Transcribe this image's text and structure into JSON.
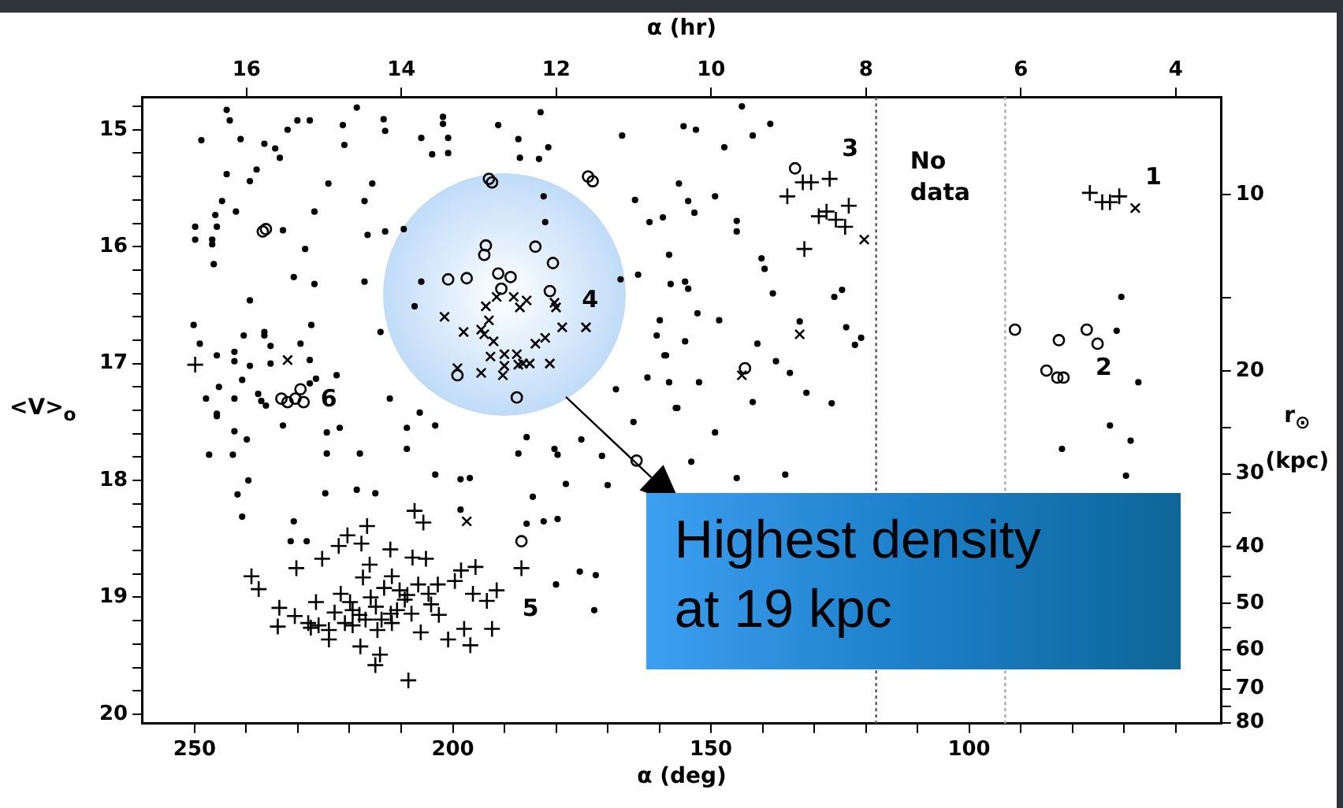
{
  "chart_data": {
    "type": "scatter",
    "xlabel": "α (deg)",
    "x2label": "α (hr)",
    "ylabel": "<V>$_{o}$",
    "y2label": "r$_{⊙}$ (kpc)",
    "xlim": [
      260.2,
      51.1
    ],
    "x2lim": [
      17.35,
      3.41
    ],
    "ylim": [
      20.08,
      14.72
    ],
    "y2lim": [
      80.3,
      6.8
    ],
    "log": "y2",
    "xticks": [
      250,
      {
        "value": 240,
        "label": null
      },
      {
        "value": 230,
        "label": null
      },
      {
        "value": 220,
        "label": null
      },
      {
        "value": 210,
        "label": null
      },
      200,
      {
        "value": 190,
        "label": null
      },
      {
        "value": 180,
        "label": null
      },
      {
        "value": 170,
        "label": null
      },
      {
        "value": 160,
        "label": null
      },
      150,
      {
        "value": 140,
        "label": null
      },
      {
        "value": 130,
        "label": null
      },
      {
        "value": 120,
        "label": null
      },
      {
        "value": 110,
        "label": null
      },
      100,
      {
        "value": 90,
        "label": null
      },
      {
        "value": 80,
        "label": null
      },
      {
        "value": 70,
        "label": null
      },
      {
        "value": 60,
        "label": null
      }
    ],
    "x2ticks": [
      16,
      14,
      12,
      10,
      8,
      6,
      4
    ],
    "yticks": [
      {
        "value": 14.8,
        "label": null
      },
      15,
      {
        "value": 15.2,
        "label": null
      },
      {
        "value": 15.4,
        "label": null
      },
      {
        "value": 15.6,
        "label": null
      },
      {
        "value": 15.8,
        "label": null
      },
      16,
      {
        "value": 16.2,
        "label": null
      },
      {
        "value": 16.4,
        "label": null
      },
      {
        "value": 16.6,
        "label": null
      },
      {
        "value": 16.8,
        "label": null
      },
      17,
      {
        "value": 17.2,
        "label": null
      },
      {
        "value": 17.4,
        "label": null
      },
      {
        "value": 17.6,
        "label": null
      },
      {
        "value": 17.8,
        "label": null
      },
      18,
      {
        "value": 18.2,
        "label": null
      },
      {
        "value": 18.4,
        "label": null
      },
      {
        "value": 18.6,
        "label": null
      },
      {
        "value": 18.8,
        "label": null
      },
      19,
      {
        "value": 19.2,
        "label": null
      },
      {
        "value": 19.4,
        "label": null
      },
      {
        "value": 19.6,
        "label": null
      },
      {
        "value": 19.8,
        "label": null
      },
      20
    ],
    "y2ticks": [
      10,
      {
        "value": 15,
        "label": null
      },
      20,
      {
        "value": 25,
        "label": null
      },
      30,
      {
        "value": 35,
        "label": null
      },
      40,
      {
        "value": 45,
        "label": null
      },
      50,
      {
        "value": 55,
        "label": null
      },
      60,
      {
        "value": 65,
        "label": null
      },
      70,
      {
        "value": 75,
        "label": null
      },
      80
    ],
    "series": [
      {
        "color": "#000000",
        "marker": "point",
        "x": [
          243.8,
          243.2,
          248.7,
          241.1,
          236.5,
          234.4,
          233.5,
          232,
          230.1,
          227.7,
          221.3,
          221,
          218.6,
          213.4,
          213.1,
          206.1,
          204,
          201.9,
          201.9,
          200.9,
          200.9,
          191.2,
          187.3,
          187,
          183,
          183.3,
          181.5,
          167.2,
          243.8,
          238,
          239.3,
          224.1,
          215.6,
          244.7,
          242,
          246,
          249.9,
          249.9,
          246.6,
          246.6,
          245.7,
          246.3,
          232.9,
          228.6,
          226.8,
          217.1,
          216.5,
          213.1,
          209.5,
          230.8,
          226.8,
          217.1,
          239.3,
          250.2,
          249,
          240.5,
          236.5,
          236.5,
          235.3,
          227.4,
          229.5,
          242.3,
          242.3,
          245.7,
          239.3,
          235.3,
          227.7,
          240.8,
          245.3,
          226.5,
          227.7,
          222.5,
          247.8,
          242.3,
          237.7,
          237.1,
          236.2,
          245.7,
          214,
          212.2,
          182.4,
          164.7,
          161.9,
          159.3,
          167.5,
          164.1,
          159.9,
          160.5,
          159,
          162.3,
          168.4,
          182.1,
          206.1,
          207.4,
          144,
          138.5,
          155.3,
          152.9,
          141.9,
          147.4,
          156.2,
          149.2,
          154.4,
          153.2,
          145,
          145,
          158.1,
          140.2,
          139.6,
          157.8,
          155,
          154.4,
          138,
          126.1,
          124.6,
          152.6,
          148.4,
          132.8,
          123.8,
          141,
          155,
          158.7,
          137.4,
          134.7,
          122.1,
          120.9,
          158.1,
          152.3,
          156.8,
          141.9,
          131.5,
          126.6,
          70.5,
          71.4,
          67.2,
          245.7,
          242.3,
          239.9,
          247.2,
          242.6,
          239.6,
          241.7,
          240.8,
          232.9,
          224.4,
          224.4,
          221.9,
          218,
          208.9,
          208.9,
          206.4,
          203.4,
          224.7,
          218.6,
          215,
          203.4,
          198.5,
          196.7,
          230.8,
          231.4,
          228.3,
          198.5,
          185.7,
          187.3,
          180.3,
          179.7,
          175.1,
          171.1,
          178.1,
          170,
          184.5,
          185.7,
          182.4,
          179.7,
          165,
          175.4,
          172.3,
          180,
          172.6,
          156.5,
          149.2,
          153.8,
          145,
          135.6,
          72.7,
          68.7,
          82,
          69.6
        ],
        "values": [
          14.83,
          14.92,
          15.09,
          15.08,
          15.12,
          15.16,
          15.24,
          15.0,
          14.92,
          14.92,
          14.96,
          15.13,
          14.81,
          14.91,
          15.01,
          15.07,
          15.21,
          14.89,
          14.95,
          15.07,
          15.2,
          14.96,
          15.08,
          15.24,
          14.85,
          15.25,
          15.15,
          15.05,
          15.38,
          15.34,
          15.44,
          15.46,
          15.46,
          15.61,
          15.7,
          15.73,
          15.83,
          15.94,
          15.94,
          15.98,
          15.83,
          16.15,
          15.86,
          16.02,
          15.7,
          15.61,
          15.9,
          15.87,
          15.85,
          16.26,
          16.32,
          16.3,
          16.46,
          16.67,
          16.83,
          16.76,
          16.76,
          16.73,
          16.85,
          16.67,
          16.83,
          16.9,
          16.98,
          16.93,
          17.02,
          17.0,
          16.97,
          17.14,
          17.2,
          17.13,
          17.17,
          17.1,
          17.3,
          17.3,
          17.26,
          17.32,
          17.36,
          17.43,
          16.73,
          17.3,
          15.57,
          15.6,
          15.79,
          15.75,
          16.28,
          16.24,
          16.63,
          16.76,
          16.93,
          17.12,
          17.22,
          15.79,
          16.3,
          16.51,
          14.8,
          14.95,
          14.97,
          15.0,
          15.05,
          15.15,
          15.46,
          15.57,
          15.61,
          15.71,
          15.78,
          15.87,
          16.07,
          16.1,
          16.19,
          16.32,
          16.3,
          16.36,
          16.4,
          16.43,
          16.37,
          16.57,
          16.63,
          16.64,
          16.69,
          16.83,
          16.81,
          16.93,
          16.98,
          17.08,
          16.84,
          16.78,
          17.16,
          17.16,
          17.38,
          17.33,
          17.25,
          17.34,
          16.43,
          16.72,
          17.16,
          17.45,
          17.58,
          17.65,
          17.78,
          17.78,
          18.0,
          18.12,
          18.31,
          17.53,
          17.59,
          17.77,
          17.55,
          17.77,
          17.55,
          17.73,
          17.42,
          17.53,
          18.11,
          18.08,
          18.11,
          17.95,
          17.99,
          17.98,
          18.35,
          18.52,
          18.52,
          18.25,
          17.63,
          17.77,
          17.73,
          17.78,
          17.65,
          17.79,
          18.03,
          18.04,
          18.14,
          18.37,
          18.35,
          18.33,
          17.5,
          18.78,
          18.81,
          18.89,
          19.11,
          17.38,
          17.59,
          17.84,
          17.98,
          17.95,
          17.53,
          17.66,
          17.73,
          17.96
        ]
      },
      {
        "color": "#000000",
        "marker": "circle",
        "x": [
          193,
          192.4,
          173.8,
          172.9,
          236.8,
          236.2,
          193.6,
          193.9,
          184,
          180.6,
          200.9,
          197.3,
          191.2,
          188.8,
          190.6,
          181.2,
          199.1,
          187.6,
          233.2,
          232,
          230.5,
          229.5,
          228.9,
          133.7,
          143.4,
          91.1,
          82.6,
          77.2,
          75.1,
          85,
          82.9,
          81.7,
          186.7,
          164.4
        ],
        "values": [
          15.42,
          15.45,
          15.4,
          15.44,
          15.87,
          15.85,
          15.99,
          16.07,
          16.0,
          16.14,
          16.28,
          16.27,
          16.23,
          16.26,
          16.36,
          16.38,
          17.1,
          17.29,
          17.3,
          17.33,
          17.3,
          17.22,
          17.33,
          15.33,
          17.04,
          16.71,
          16.8,
          16.71,
          16.83,
          17.06,
          17.12,
          17.12,
          18.52,
          17.83
        ]
      },
      {
        "color": "#000000",
        "marker": "x",
        "x": [
          232,
          201.6,
          197.9,
          193.6,
          191.5,
          193,
          194.5,
          193.9,
          192.1,
          188.2,
          185.7,
          187,
          180.3,
          180,
          178.8,
          174.2,
          184,
          182.1,
          192.7,
          190,
          187.6,
          190,
          190.3,
          186.4,
          185.1,
          187.3,
          181.2,
          199.1,
          194.5,
          120.3,
          132.8,
          144,
          67.8,
          197.3
        ],
        "values": [
          16.97,
          16.6,
          16.73,
          16.51,
          16.43,
          16.63,
          16.71,
          16.75,
          16.81,
          16.43,
          16.46,
          16.52,
          16.48,
          16.52,
          16.69,
          16.69,
          16.83,
          16.78,
          16.94,
          16.92,
          16.92,
          17.02,
          17.1,
          17.0,
          17.0,
          17.01,
          17.0,
          17.04,
          17.08,
          15.94,
          16.75,
          17.1,
          15.67,
          18.35
        ]
      },
      {
        "color": "#000000",
        "marker": "cross",
        "x": [
          249.9,
          135.2,
          132.2,
          130.6,
          127,
          123.3,
          129.1,
          127.6,
          125.8,
          124,
          131.9,
          76.6,
          74.2,
          72.7,
          70.9,
          207.4,
          205.7,
          216.6,
          220.4,
          217.7,
          222.1,
          212.1,
          225.3,
          230.3,
          239.0,
          237.6,
          216.1,
          207.8,
          205.2,
          217.4,
          211.8,
          198.4,
          195.6,
          186.7,
          206.7,
          202.9,
          199.6,
          191.5,
          196.1,
          193.4,
          213.3,
          210.3,
          208.8,
          209.3,
          221.7,
          219.9,
          215.9,
          204.7,
          204.2,
          233.6,
          233.9,
          230.6,
          226.5,
          228.0,
          226.0,
          224.0,
          219.4,
          218.1,
          216.9,
          214.9,
          213.8,
          212.0,
          210.8,
          208.0,
          202.7,
          224.0,
          219.4,
          214.6,
          211.8,
          206.2,
          197.8,
          200.9,
          196.6,
          192.4,
          217.9,
          214.1,
          215.0,
          208.6,
          222.9,
          220.9,
          227.5
        ],
        "values": [
          17.01,
          15.57,
          15.45,
          15.45,
          15.42,
          15.65,
          15.74,
          15.7,
          15.77,
          15.83,
          16.02,
          15.54,
          15.62,
          15.62,
          15.57,
          18.26,
          18.36,
          18.39,
          18.47,
          18.54,
          18.56,
          18.59,
          18.67,
          18.75,
          18.82,
          18.93,
          18.72,
          18.66,
          18.67,
          18.83,
          18.82,
          18.77,
          18.74,
          18.75,
          18.89,
          18.89,
          18.86,
          18.94,
          18.97,
          19.03,
          18.92,
          18.94,
          18.98,
          19.02,
          18.97,
          19.04,
          19.0,
          18.97,
          19.06,
          19.09,
          19.25,
          19.16,
          19.04,
          19.22,
          19.24,
          19.28,
          19.11,
          19.15,
          19.19,
          19.08,
          19.19,
          19.14,
          19.11,
          19.14,
          19.15,
          19.36,
          19.24,
          19.28,
          19.22,
          19.3,
          19.27,
          19.36,
          19.41,
          19.27,
          19.42,
          19.49,
          19.58,
          19.71,
          19.13,
          19.22,
          19.26
        ]
      }
    ],
    "ref_lines": [
      {
        "axis": "x",
        "value": 118,
        "color": "#555555",
        "line_style": "dotted"
      },
      {
        "axis": "x",
        "value": 93,
        "color": "#aaaaaa",
        "line_style": "dotted"
      }
    ],
    "annotations": [
      "1",
      "2",
      "3",
      "4",
      "5",
      "6",
      "No data",
      "Highest density at 19 kpc"
    ]
  }
}
